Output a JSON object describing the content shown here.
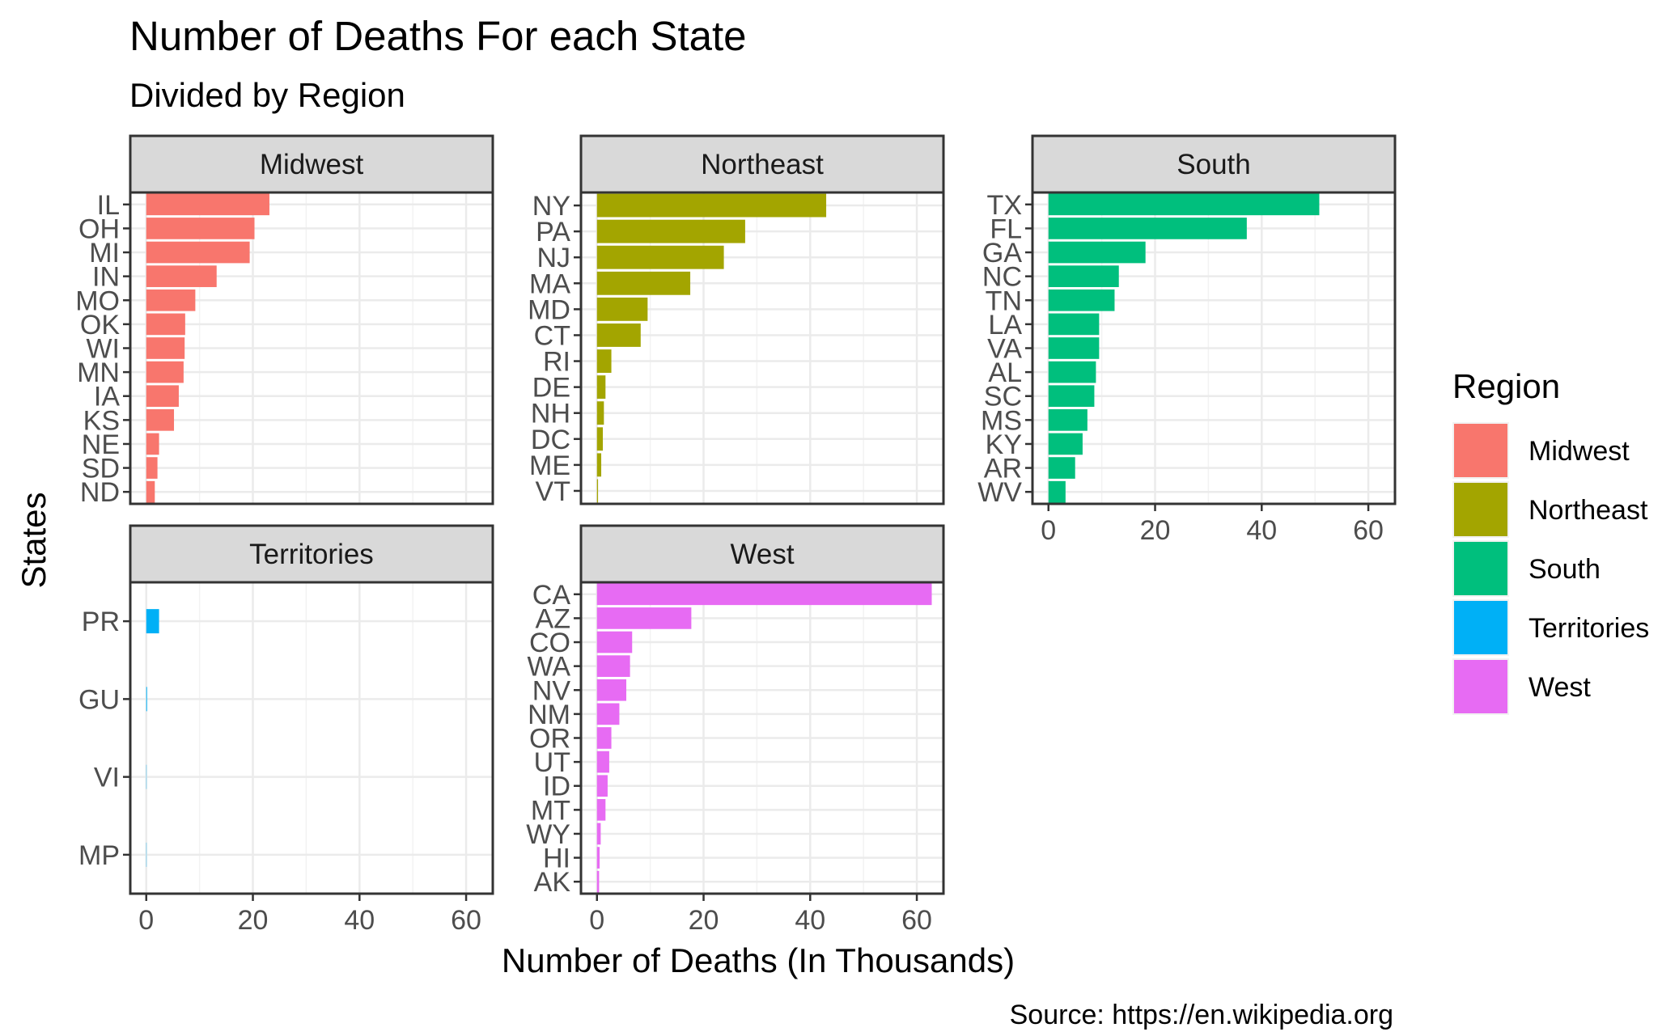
{
  "chart_data": {
    "type": "bar",
    "orientation": "horizontal",
    "title": "Number of Deaths For each State",
    "subtitle": "Divided by Region",
    "xlabel": "Number of Deaths (In Thousands)",
    "ylabel": "States",
    "caption": "Source: https://en.wikipedia.org",
    "xlim": [
      -3,
      65
    ],
    "xticks": [
      0,
      20,
      40,
      60
    ],
    "grid": true,
    "legend": {
      "title": "Region",
      "placement": "right",
      "entries": [
        {
          "label": "Midwest",
          "color": "#F8766D"
        },
        {
          "label": "Northeast",
          "color": "#A3A500"
        },
        {
          "label": "South",
          "color": "#00BF7D"
        },
        {
          "label": "Territories",
          "color": "#00B0F6"
        },
        {
          "label": "West",
          "color": "#E76BF3"
        }
      ]
    },
    "facets": [
      {
        "name": "Midwest",
        "color": "#F8766D",
        "categories": [
          "IL",
          "OH",
          "MI",
          "IN",
          "MO",
          "OK",
          "WI",
          "MN",
          "IA",
          "KS",
          "NE",
          "SD",
          "ND"
        ],
        "values": [
          23.1,
          20.3,
          19.4,
          13.2,
          9.2,
          7.3,
          7.2,
          7.0,
          6.1,
          5.2,
          2.4,
          2.1,
          1.6
        ]
      },
      {
        "name": "Northeast",
        "color": "#A3A500",
        "categories": [
          "NY",
          "PA",
          "NJ",
          "MA",
          "MD",
          "CT",
          "RI",
          "DE",
          "NH",
          "DC",
          "ME",
          "VT"
        ],
        "values": [
          43.0,
          27.8,
          23.8,
          17.5,
          9.5,
          8.2,
          2.7,
          1.6,
          1.3,
          1.1,
          0.8,
          0.2
        ]
      },
      {
        "name": "South",
        "color": "#00BF7D",
        "categories": [
          "TX",
          "FL",
          "GA",
          "NC",
          "TN",
          "LA",
          "VA",
          "AL",
          "SC",
          "MS",
          "KY",
          "AR",
          "WV"
        ],
        "values": [
          50.8,
          37.2,
          18.2,
          13.2,
          12.4,
          9.5,
          9.5,
          8.9,
          8.6,
          7.3,
          6.4,
          5.0,
          3.2
        ]
      },
      {
        "name": "Territories",
        "color": "#00B0F6",
        "categories": [
          "PR",
          "GU",
          "VI",
          "MP"
        ],
        "values": [
          2.4,
          0.15,
          0.03,
          0.003
        ]
      },
      {
        "name": "West",
        "color": "#E76BF3",
        "categories": [
          "CA",
          "AZ",
          "CO",
          "WA",
          "NV",
          "NM",
          "OR",
          "UT",
          "ID",
          "MT",
          "WY",
          "HI",
          "AK"
        ],
        "values": [
          62.8,
          17.7,
          6.6,
          6.2,
          5.5,
          4.2,
          2.7,
          2.3,
          2.0,
          1.6,
          0.7,
          0.5,
          0.4
        ]
      }
    ]
  }
}
